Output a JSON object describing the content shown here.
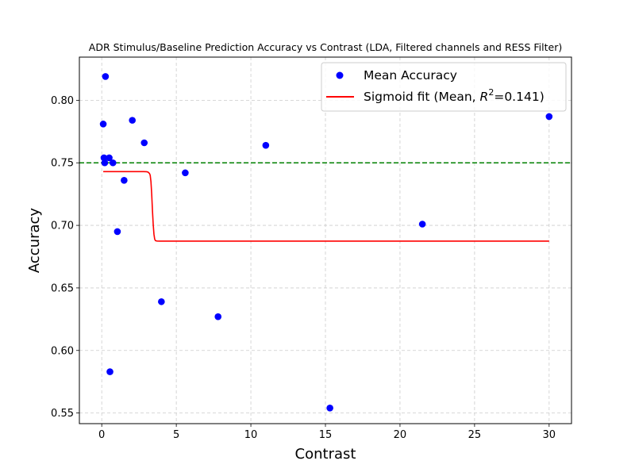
{
  "chart_data": {
    "type": "scatter",
    "title": "ADR Stimulus/Baseline Prediction Accuracy vs Contrast (LDA, Filtered channels and RESS Filter)",
    "xlabel": "Contrast",
    "ylabel": "Accuracy",
    "xlim": [
      -1.5,
      31.5
    ],
    "ylim": [
      0.5415,
      0.8345
    ],
    "xticks": [
      0,
      5,
      10,
      15,
      20,
      25,
      30
    ],
    "yticks": [
      0.55,
      0.6,
      0.65,
      0.7,
      0.75,
      0.8
    ],
    "ytick_labels": [
      "0.55",
      "0.60",
      "0.65",
      "0.70",
      "0.75",
      "0.80"
    ],
    "grid": true,
    "legend_position": "top-right",
    "series": [
      {
        "name": "Mean Accuracy",
        "kind": "scatter",
        "color": "#0000ff",
        "points": [
          {
            "x": 0.1,
            "y": 0.781
          },
          {
            "x": 0.15,
            "y": 0.754
          },
          {
            "x": 0.2,
            "y": 0.75
          },
          {
            "x": 0.25,
            "y": 0.819
          },
          {
            "x": 0.5,
            "y": 0.754
          },
          {
            "x": 0.55,
            "y": 0.583
          },
          {
            "x": 0.75,
            "y": 0.75
          },
          {
            "x": 1.05,
            "y": 0.695
          },
          {
            "x": 1.5,
            "y": 0.736
          },
          {
            "x": 2.05,
            "y": 0.784
          },
          {
            "x": 2.85,
            "y": 0.766
          },
          {
            "x": 4.0,
            "y": 0.639
          },
          {
            "x": 5.6,
            "y": 0.742
          },
          {
            "x": 7.8,
            "y": 0.627
          },
          {
            "x": 11.0,
            "y": 0.764
          },
          {
            "x": 15.3,
            "y": 0.554
          },
          {
            "x": 21.5,
            "y": 0.701
          },
          {
            "x": 30.0,
            "y": 0.787
          }
        ]
      },
      {
        "name": "Sigmoid fit (Mean, R²=0.141)",
        "legend_prefix": "Sigmoid fit (Mean, ",
        "legend_r": "R",
        "legend_sup": "2",
        "legend_suffix": "=0.141)",
        "kind": "line",
        "color": "#ff0000",
        "x": [
          0.1,
          2.0,
          2.8,
          3.0,
          3.1,
          3.2,
          3.25,
          3.3,
          3.35,
          3.4,
          3.45,
          3.5,
          3.55,
          3.6,
          3.7,
          3.9,
          5.0,
          30.0
        ],
        "y": [
          0.743,
          0.743,
          0.743,
          0.7429,
          0.7426,
          0.7415,
          0.74,
          0.735,
          0.725,
          0.712,
          0.701,
          0.693,
          0.689,
          0.6878,
          0.6875,
          0.6874,
          0.6874,
          0.6874
        ]
      }
    ],
    "reference_line": {
      "y": 0.75,
      "color": "#008000",
      "style": "dashed"
    }
  }
}
